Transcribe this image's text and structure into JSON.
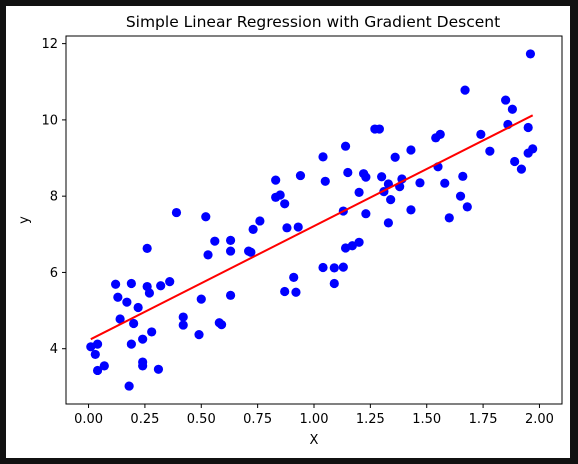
{
  "chart_data": {
    "type": "scatter",
    "title": "Simple Linear Regression with Gradient Descent",
    "xlabel": "X",
    "ylabel": "y",
    "xlim": [
      -0.1,
      2.1
    ],
    "ylim": [
      2.55,
      12.2
    ],
    "grid": false,
    "legend": "none",
    "x_ticks": [
      "0.00",
      "0.25",
      "0.50",
      "0.75",
      "1.00",
      "1.25",
      "1.50",
      "1.75",
      "2.00"
    ],
    "x_tick_values": [
      0,
      0.25,
      0.5,
      0.75,
      1.0,
      1.25,
      1.5,
      1.75,
      2.0
    ],
    "y_ticks": [
      "4",
      "6",
      "8",
      "10",
      "12"
    ],
    "y_tick_values": [
      4,
      6,
      8,
      10,
      12
    ],
    "colors": {
      "points": "#0000ff",
      "line": "#ff0000"
    },
    "series": [
      {
        "type": "scatter",
        "color": "#0000ff",
        "points": [
          [
            0.01,
            4.05
          ],
          [
            0.03,
            3.85
          ],
          [
            0.04,
            4.12
          ],
          [
            0.04,
            3.43
          ],
          [
            0.07,
            3.55
          ],
          [
            0.12,
            5.69
          ],
          [
            0.13,
            5.35
          ],
          [
            0.14,
            4.78
          ],
          [
            0.17,
            5.22
          ],
          [
            0.18,
            3.02
          ],
          [
            0.19,
            4.12
          ],
          [
            0.19,
            5.71
          ],
          [
            0.2,
            4.66
          ],
          [
            0.22,
            5.08
          ],
          [
            0.24,
            4.25
          ],
          [
            0.24,
            3.55
          ],
          [
            0.24,
            3.65
          ],
          [
            0.26,
            6.63
          ],
          [
            0.26,
            5.63
          ],
          [
            0.27,
            5.46
          ],
          [
            0.28,
            4.44
          ],
          [
            0.31,
            3.46
          ],
          [
            0.32,
            5.65
          ],
          [
            0.36,
            5.76
          ],
          [
            0.39,
            7.57
          ],
          [
            0.42,
            4.62
          ],
          [
            0.42,
            4.83
          ],
          [
            0.49,
            4.37
          ],
          [
            0.5,
            5.3
          ],
          [
            0.52,
            7.46
          ],
          [
            0.53,
            6.46
          ],
          [
            0.56,
            6.82
          ],
          [
            0.58,
            4.68
          ],
          [
            0.59,
            4.63
          ],
          [
            0.63,
            5.4
          ],
          [
            0.63,
            6.56
          ],
          [
            0.63,
            6.84
          ],
          [
            0.71,
            6.56
          ],
          [
            0.72,
            6.53
          ],
          [
            0.73,
            7.13
          ],
          [
            0.76,
            7.35
          ],
          [
            0.83,
            8.42
          ],
          [
            0.83,
            7.97
          ],
          [
            0.85,
            8.03
          ],
          [
            0.87,
            7.8
          ],
          [
            0.87,
            5.5
          ],
          [
            0.88,
            7.17
          ],
          [
            0.91,
            5.87
          ],
          [
            0.92,
            5.48
          ],
          [
            0.93,
            7.19
          ],
          [
            0.94,
            8.54
          ],
          [
            1.04,
            9.03
          ],
          [
            1.04,
            6.13
          ],
          [
            1.05,
            8.39
          ],
          [
            1.09,
            6.12
          ],
          [
            1.09,
            5.71
          ],
          [
            1.13,
            6.14
          ],
          [
            1.13,
            7.61
          ],
          [
            1.14,
            9.31
          ],
          [
            1.14,
            6.64
          ],
          [
            1.15,
            8.62
          ],
          [
            1.17,
            6.7
          ],
          [
            1.2,
            6.79
          ],
          [
            1.2,
            8.1
          ],
          [
            1.22,
            8.59
          ],
          [
            1.23,
            7.54
          ],
          [
            1.23,
            8.5
          ],
          [
            1.27,
            9.76
          ],
          [
            1.29,
            9.76
          ],
          [
            1.3,
            8.51
          ],
          [
            1.31,
            8.12
          ],
          [
            1.33,
            7.3
          ],
          [
            1.33,
            8.32
          ],
          [
            1.34,
            7.91
          ],
          [
            1.36,
            9.02
          ],
          [
            1.38,
            8.25
          ],
          [
            1.39,
            8.45
          ],
          [
            1.43,
            9.21
          ],
          [
            1.43,
            7.64
          ],
          [
            1.47,
            8.35
          ],
          [
            1.54,
            9.53
          ],
          [
            1.56,
            9.62
          ],
          [
            1.55,
            8.77
          ],
          [
            1.58,
            8.34
          ],
          [
            1.6,
            7.43
          ],
          [
            1.65,
            8.0
          ],
          [
            1.66,
            8.52
          ],
          [
            1.67,
            10.78
          ],
          [
            1.68,
            7.72
          ],
          [
            1.74,
            9.62
          ],
          [
            1.78,
            9.18
          ],
          [
            1.85,
            10.52
          ],
          [
            1.86,
            9.88
          ],
          [
            1.88,
            10.28
          ],
          [
            1.89,
            8.91
          ],
          [
            1.92,
            8.71
          ],
          [
            1.95,
            9.8
          ],
          [
            1.95,
            9.13
          ],
          [
            1.96,
            11.73
          ],
          [
            1.97,
            9.24
          ]
        ]
      },
      {
        "type": "line",
        "color": "#ff0000",
        "x": [
          0.01,
          1.97
        ],
        "y": [
          4.25,
          10.12
        ]
      }
    ]
  }
}
